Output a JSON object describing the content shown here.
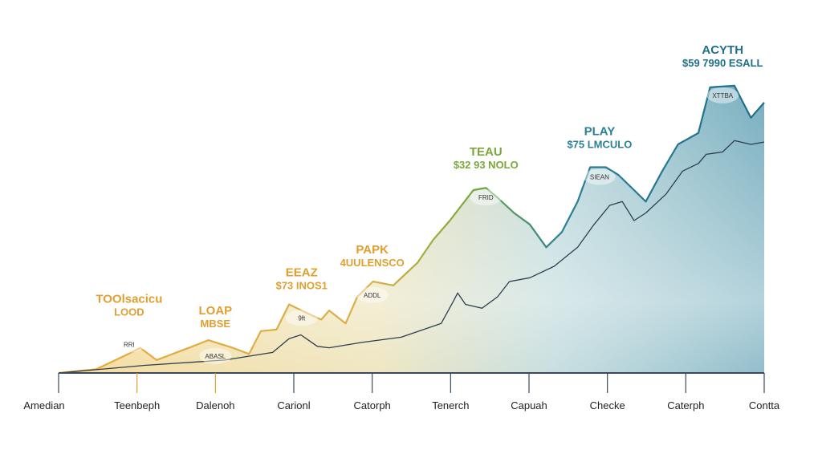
{
  "chart_data": {
    "type": "area",
    "title": "",
    "xlabel": "",
    "ylabel": "",
    "grid": false,
    "legend": "none",
    "categories": [
      "Amedian",
      "Teenbeph",
      "Dalenoh",
      "Carionl",
      "Catorph",
      "Tenerch",
      "Capuah",
      "Checke",
      "Caterph",
      "Contta"
    ],
    "series": [
      {
        "role": "upper-area",
        "x": [
          0,
          0.48,
          0.89,
          1.04,
          1.25,
          1.71,
          1.91,
          2.22,
          2.43,
          2.58,
          2.78,
          2.94,
          3.14,
          3.35,
          3.45,
          3.66,
          3.81,
          4.01,
          4.27,
          4.58,
          4.78,
          4.99,
          5.14,
          5.29,
          5.45,
          5.6,
          5.81,
          6.01,
          6.22,
          6.42,
          6.62,
          6.78,
          6.98,
          7.14,
          7.34,
          7.49,
          7.7,
          7.9,
          8.16,
          8.31,
          8.62,
          8.83,
          9
        ],
        "values": [
          0,
          5,
          25,
          33,
          17,
          35,
          43,
          33,
          25,
          55,
          57,
          90,
          80,
          70,
          82,
          65,
          100,
          120,
          115,
          145,
          175,
          200,
          220,
          240,
          243,
          230,
          210,
          195,
          165,
          185,
          225,
          270,
          270,
          260,
          240,
          225,
          265,
          300,
          315,
          375,
          377,
          335,
          355
        ]
      },
      {
        "role": "lower-line",
        "x": [
          0,
          1.1,
          2.12,
          2.73,
          2.94,
          3.09,
          3.3,
          3.45,
          3.86,
          4.37,
          4.88,
          5.04,
          5.09,
          5.19,
          5.4,
          5.6,
          5.75,
          6.01,
          6.32,
          6.62,
          6.83,
          7.03,
          7.19,
          7.34,
          7.49,
          7.75,
          7.96,
          8.16,
          8.26,
          8.47,
          8.62,
          8.83,
          9
        ],
        "values": [
          0,
          10,
          17,
          27,
          45,
          50,
          35,
          33,
          40,
          47,
          65,
          95,
          105,
          90,
          85,
          100,
          120,
          125,
          140,
          165,
          195,
          220,
          225,
          200,
          210,
          235,
          265,
          275,
          287,
          290,
          305,
          300,
          303
        ]
      }
    ],
    "ylim": [
      0,
      400
    ],
    "colors": {
      "start": "#e8a93a",
      "mid": "#7aa83a",
      "end": "#1e6f8a",
      "line": "#2c3e50"
    },
    "annotations": [
      {
        "title": "TOOlsacicu",
        "value": "LOOD",
        "bubble": "RRI",
        "x": 0.9,
        "y": 50,
        "color": "#e0a030"
      },
      {
        "title": "LOAP",
        "value": "MBSE",
        "bubble": "ABASL",
        "x": 2.0,
        "y": 35,
        "color": "#e0a030"
      },
      {
        "title": "EEAZ",
        "value": "$73 INOS1",
        "bubble": "9ft",
        "x": 3.1,
        "y": 85,
        "color": "#e0a030"
      },
      {
        "title": "PAPK",
        "value": "4UULENSCO",
        "bubble": "ADDL",
        "x": 4.0,
        "y": 115,
        "color": "#e0a030"
      },
      {
        "title": "TEAU",
        "value": "$32 93 NOLO",
        "bubble": "FRID",
        "x": 5.45,
        "y": 243,
        "color": "#7aa83a"
      },
      {
        "title": "PLAY",
        "value": "$75 LMCULO",
        "bubble": "SIEAN",
        "x": 6.9,
        "y": 270,
        "color": "#2a7f95"
      },
      {
        "title": "ACYTH",
        "value": "$59 7990 ESALL",
        "bubble": "XTTBA",
        "x": 8.47,
        "y": 377,
        "color": "#1e6f8a"
      }
    ]
  }
}
